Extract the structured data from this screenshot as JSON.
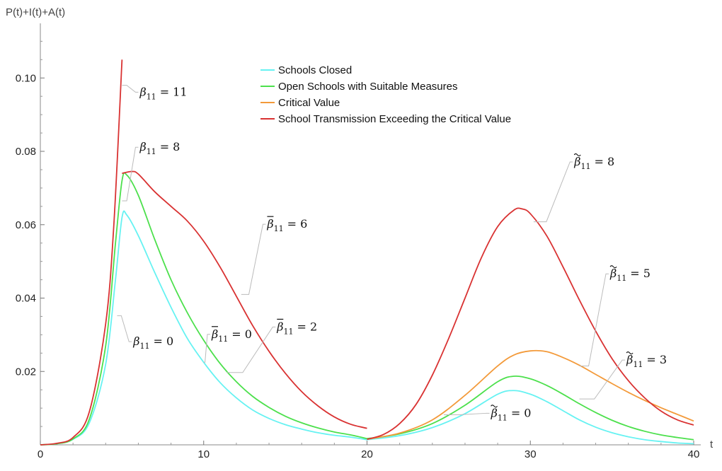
{
  "chart_data": {
    "type": "line",
    "title": "",
    "xlabel": "t",
    "ylabel": "P(t)+I(t)+A(t)",
    "xlim": [
      0,
      40
    ],
    "ylim": [
      0,
      0.112
    ],
    "x_ticks": [
      0,
      10,
      20,
      30,
      40
    ],
    "x_tick_labels": [
      "0",
      "10",
      "20",
      "30",
      "40"
    ],
    "y_ticks": [
      0.02,
      0.04,
      0.06,
      0.08,
      0.1
    ],
    "y_tick_labels": [
      "0.02",
      "0.04",
      "0.06",
      "0.08",
      "0.10"
    ],
    "grid": false,
    "legend_position": "top-center",
    "series": [
      {
        "name": "Schools Closed",
        "color": "#66f2f2",
        "segments": [
          [
            [
              0,
              0
            ],
            [
              1,
              0.0003
            ],
            [
              2,
              0.0015
            ],
            [
              3,
              0.006
            ],
            [
              4,
              0.022
            ],
            [
              4.6,
              0.045
            ],
            [
              5,
              0.062
            ],
            [
              5.3,
              0.0626
            ],
            [
              6,
              0.057
            ],
            [
              7,
              0.047
            ],
            [
              8,
              0.0375
            ],
            [
              9,
              0.029
            ],
            [
              10,
              0.0225
            ],
            [
              11,
              0.017
            ],
            [
              12,
              0.0128
            ],
            [
              13,
              0.0095
            ],
            [
              14,
              0.0072
            ],
            [
              15,
              0.0055
            ],
            [
              16,
              0.0043
            ],
            [
              17,
              0.0033
            ],
            [
              18,
              0.0026
            ],
            [
              19,
              0.0021
            ],
            [
              20,
              0.0014
            ]
          ],
          [
            [
              20,
              0.0014
            ],
            [
              22,
              0.0025
            ],
            [
              24,
              0.0047
            ],
            [
              26,
              0.0085
            ],
            [
              28,
              0.0138
            ],
            [
              29,
              0.0148
            ],
            [
              30,
              0.0138
            ],
            [
              31,
              0.0118
            ],
            [
              32,
              0.0093
            ],
            [
              33,
              0.0068
            ],
            [
              34,
              0.0048
            ],
            [
              35,
              0.0033
            ],
            [
              36,
              0.0022
            ],
            [
              37,
              0.0014
            ],
            [
              38,
              0.0009
            ],
            [
              39,
              0.0005
            ],
            [
              40,
              0.0003
            ]
          ]
        ]
      },
      {
        "name": "Open Schools with Suitable Measures",
        "color": "#4ce04c",
        "segments": [
          [
            [
              0,
              0
            ],
            [
              1,
              0.0003
            ],
            [
              2,
              0.0016
            ],
            [
              3,
              0.007
            ],
            [
              4,
              0.027
            ],
            [
              4.6,
              0.055
            ],
            [
              5,
              0.072
            ],
            [
              5.3,
              0.0735
            ],
            [
              6,
              0.068
            ],
            [
              7,
              0.056
            ],
            [
              8,
              0.045
            ],
            [
              9,
              0.036
            ],
            [
              10,
              0.0285
            ],
            [
              11,
              0.0222
            ],
            [
              12,
              0.0172
            ],
            [
              13,
              0.0132
            ],
            [
              14,
              0.0102
            ],
            [
              15,
              0.0078
            ],
            [
              16,
              0.006
            ],
            [
              17,
              0.0046
            ],
            [
              18,
              0.0035
            ],
            [
              19,
              0.0027
            ],
            [
              20,
              0.0017
            ]
          ],
          [
            [
              20,
              0.0017
            ],
            [
              22,
              0.003
            ],
            [
              24,
              0.0058
            ],
            [
              26,
              0.0108
            ],
            [
              28,
              0.0172
            ],
            [
              29,
              0.0187
            ],
            [
              30,
              0.018
            ],
            [
              31,
              0.0162
            ],
            [
              32,
              0.0138
            ],
            [
              33,
              0.0112
            ],
            [
              34,
              0.0088
            ],
            [
              35,
              0.0067
            ],
            [
              36,
              0.005
            ],
            [
              37,
              0.0037
            ],
            [
              38,
              0.0027
            ],
            [
              39,
              0.002
            ],
            [
              40,
              0.0014
            ]
          ]
        ]
      },
      {
        "name": "Critical Value",
        "color": "#f39a3a",
        "segments": [
          [
            [
              20,
              0.0015
            ],
            [
              22,
              0.0032
            ],
            [
              24,
              0.0068
            ],
            [
              26,
              0.0135
            ],
            [
              28,
              0.0215
            ],
            [
              29,
              0.0245
            ],
            [
              30,
              0.0256
            ],
            [
              31,
              0.0254
            ],
            [
              32,
              0.0238
            ],
            [
              33,
              0.0217
            ],
            [
              34,
              0.0192
            ],
            [
              35,
              0.0167
            ],
            [
              36,
              0.0143
            ],
            [
              37,
              0.0121
            ],
            [
              38,
              0.0101
            ],
            [
              39,
              0.0083
            ],
            [
              40,
              0.0065
            ]
          ]
        ]
      },
      {
        "name": "School Transmission Exceeding the Critical Value",
        "color": "#d93232",
        "segments": [
          [
            [
              0,
              0
            ],
            [
              1,
              0.0004
            ],
            [
              2,
              0.002
            ],
            [
              3,
              0.009
            ],
            [
              4,
              0.033
            ],
            [
              4.5,
              0.06
            ],
            [
              5,
              0.105
            ]
          ],
          [
            [
              5,
              0.074
            ],
            [
              5.6,
              0.0745
            ],
            [
              6,
              0.0738
            ],
            [
              7,
              0.069
            ],
            [
              8,
              0.065
            ],
            [
              9,
              0.061
            ],
            [
              10,
              0.0555
            ],
            [
              11,
              0.0485
            ],
            [
              12,
              0.0405
            ],
            [
              13,
              0.0325
            ],
            [
              14,
              0.0255
            ],
            [
              15,
              0.0195
            ],
            [
              16,
              0.0145
            ],
            [
              17,
              0.0106
            ],
            [
              18,
              0.0076
            ],
            [
              19,
              0.0056
            ],
            [
              20,
              0.0045
            ]
          ],
          [
            [
              20,
              0.0015
            ],
            [
              21,
              0.0028
            ],
            [
              22,
              0.0058
            ],
            [
              23,
              0.011
            ],
            [
              24,
              0.019
            ],
            [
              25,
              0.029
            ],
            [
              26,
              0.04
            ],
            [
              27,
              0.051
            ],
            [
              28,
              0.0595
            ],
            [
              29,
              0.064
            ],
            [
              29.5,
              0.0643
            ],
            [
              30,
              0.063
            ],
            [
              31,
              0.057
            ],
            [
              32,
              0.0485
            ],
            [
              33,
              0.0395
            ],
            [
              34,
              0.031
            ],
            [
              35,
              0.0235
            ],
            [
              36,
              0.0175
            ],
            [
              37,
              0.0128
            ],
            [
              38,
              0.0092
            ],
            [
              39,
              0.0068
            ],
            [
              40,
              0.0054
            ]
          ]
        ]
      }
    ],
    "annotations": [
      {
        "symbol": "β",
        "accent": "",
        "sub": "11",
        "value": "= 11",
        "label_x": 6.0,
        "label_y": 0.0965,
        "point": [
          5.0,
          0.098
        ]
      },
      {
        "symbol": "β",
        "accent": "",
        "sub": "11",
        "value": "= 8",
        "label_x": 6.0,
        "label_y": 0.0815,
        "point": [
          5.0,
          0.0665
        ]
      },
      {
        "symbol": "β",
        "accent": "",
        "sub": "11",
        "value": "= 0",
        "label_x": 5.6,
        "label_y": 0.0285,
        "point": [
          4.7,
          0.0352
        ]
      },
      {
        "symbol": "β",
        "accent": "bar",
        "sub": "11",
        "value": "= 6",
        "label_x": 13.8,
        "label_y": 0.0605,
        "point": [
          12.3,
          0.041
        ]
      },
      {
        "symbol": "β",
        "accent": "bar",
        "sub": "11",
        "value": "= 0",
        "label_x": 10.4,
        "label_y": 0.0305,
        "point": [
          10.0,
          0.0225
        ]
      },
      {
        "symbol": "β",
        "accent": "bar",
        "sub": "11",
        "value": "= 2",
        "label_x": 14.4,
        "label_y": 0.0325,
        "point": [
          11.4,
          0.0197
        ]
      },
      {
        "symbol": "β",
        "accent": "tilde",
        "sub": "11",
        "value": "= 8",
        "label_x": 32.6,
        "label_y": 0.0775,
        "point": [
          30.2,
          0.0608
        ]
      },
      {
        "symbol": "β",
        "accent": "tilde",
        "sub": "11",
        "value": "= 5",
        "label_x": 34.8,
        "label_y": 0.047,
        "point": [
          33.0,
          0.0215
        ]
      },
      {
        "symbol": "β",
        "accent": "tilde",
        "sub": "11",
        "value": "= 3",
        "label_x": 35.8,
        "label_y": 0.0235,
        "point": [
          33.0,
          0.0125
        ]
      },
      {
        "symbol": "β",
        "accent": "tilde",
        "sub": "11",
        "value": "= 0",
        "label_x": 27.5,
        "label_y": 0.009,
        "point": [
          24.7,
          0.0082
        ]
      }
    ]
  }
}
